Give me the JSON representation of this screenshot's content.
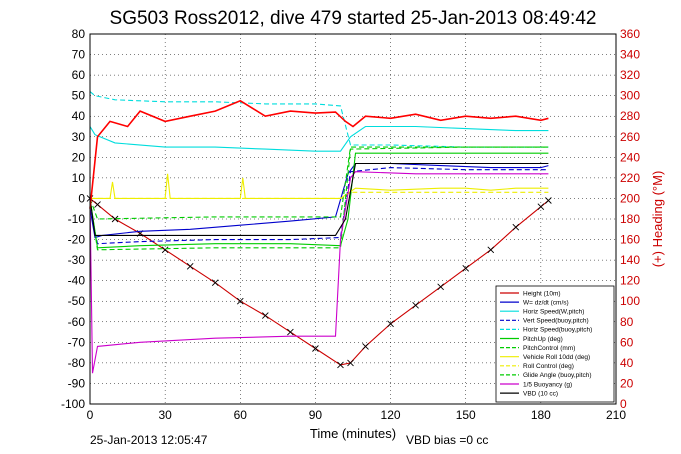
{
  "chart_data": {
    "type": "line",
    "title": "SG503 Ross2012, dive 479 started 25-Jan-2013 08:49:42",
    "xlabel": "Time (minutes)",
    "ylabel_right": "(+) Heading (°M)",
    "xlim": [
      0,
      210
    ],
    "ylim": [
      -100,
      80
    ],
    "ylim_right": [
      0,
      360
    ],
    "x_ticks": [
      "0",
      "30",
      "60",
      "90",
      "120",
      "150",
      "180",
      "210"
    ],
    "y_ticks": [
      "80",
      "70",
      "60",
      "50",
      "40",
      "30",
      "20",
      "10",
      "0",
      "-10",
      "-20",
      "-30",
      "-40",
      "-50",
      "-60",
      "-70",
      "-80",
      "-90",
      "-100"
    ],
    "y_ticks_right": [
      "360",
      "340",
      "320",
      "300",
      "280",
      "260",
      "240",
      "220",
      "200",
      "180",
      "160",
      "140",
      "120",
      "100",
      "80",
      "60",
      "40",
      "20",
      "0"
    ],
    "grid": true,
    "legend_position": "bottom-right",
    "footer_left": "25-Jan-2013 12:05:47",
    "footer_right": "VBD bias =0 cc",
    "series": [
      {
        "name": "Height (10m)",
        "color": "#cc0000",
        "style": "solid",
        "marker": "x",
        "x": [
          0,
          3,
          10,
          20,
          30,
          40,
          50,
          60,
          70,
          80,
          90,
          100,
          104,
          110,
          120,
          130,
          140,
          150,
          160,
          170,
          180,
          183
        ],
        "y": [
          0,
          -3,
          -10,
          -17,
          -25,
          -33,
          -41,
          -50,
          -57,
          -65,
          -73,
          -81,
          -80,
          -72,
          -61,
          -52,
          -43,
          -34,
          -25,
          -14,
          -4,
          -1
        ]
      },
      {
        "name": "W= dz/dt (cm/s)",
        "color": "#0000cc",
        "style": "solid",
        "x": [
          0,
          2,
          5,
          20,
          40,
          60,
          80,
          98,
          103,
          106,
          120,
          140,
          160,
          180,
          183
        ],
        "y": [
          -5,
          -19,
          -18,
          -16,
          -15,
          -13,
          -11,
          -9,
          12,
          17,
          17,
          16,
          15,
          15,
          16
        ]
      },
      {
        "name": "Horiz Speed(W,pitch)",
        "color": "#00dddd",
        "style": "solid",
        "x": [
          0,
          2,
          10,
          30,
          50,
          70,
          90,
          100,
          104,
          110,
          130,
          150,
          170,
          183
        ],
        "y": [
          35,
          31,
          27,
          25,
          25,
          24,
          23,
          23,
          30,
          35,
          35,
          34,
          33,
          33
        ]
      },
      {
        "name": "Vert Speed(buoy,pitch)",
        "color": "#0000cc",
        "style": "dashed",
        "x": [
          0,
          3,
          20,
          50,
          80,
          100,
          104,
          120,
          150,
          183
        ],
        "y": [
          -5,
          -22,
          -21,
          -20,
          -20,
          -19,
          13,
          15,
          14,
          14
        ]
      },
      {
        "name": "Horiz Speed(buoy,pitch)",
        "color": "#00dddd",
        "style": "dashed",
        "x": [
          0,
          2,
          10,
          30,
          50,
          70,
          90,
          100,
          104,
          120,
          150,
          183
        ],
        "y": [
          52,
          50,
          48,
          47,
          47,
          46,
          46,
          45,
          26,
          26,
          25,
          25
        ]
      },
      {
        "name": "PitchUp (deg)",
        "color": "#00cc00",
        "style": "solid",
        "x": [
          0,
          3,
          20,
          50,
          80,
          100,
          103,
          106,
          130,
          160,
          183
        ],
        "y": [
          0,
          -24,
          -23,
          -22,
          -22,
          -23,
          -10,
          22,
          22,
          22,
          22
        ]
      },
      {
        "name": "PitchControl (mm)",
        "color": "#00cc00",
        "style": "dashed",
        "x": [
          0,
          3,
          50,
          100,
          104,
          130,
          183
        ],
        "y": [
          0,
          -10,
          -9,
          -9,
          25,
          25,
          25
        ]
      },
      {
        "name": "Vehicle Roll 10dd (deg)",
        "color": "#eeee00",
        "style": "solid",
        "x": [
          0,
          8,
          9,
          10,
          20,
          30,
          31,
          32,
          60,
          61,
          62,
          100,
          106,
          120,
          140,
          150,
          160,
          170,
          183
        ],
        "y": [
          0,
          0,
          8,
          0,
          0,
          0,
          12,
          0,
          0,
          10,
          0,
          0,
          5,
          4,
          5,
          5,
          4,
          5,
          5
        ]
      },
      {
        "name": "Roll Control (deg)",
        "color": "#eeee00",
        "style": "dashed",
        "x": [
          0,
          100,
          104,
          183
        ],
        "y": [
          0,
          0,
          3,
          3
        ]
      },
      {
        "name": "Glide Angle (buoy,pitch)",
        "color": "#00cc00",
        "style": "dashed",
        "x": [
          0,
          3,
          50,
          100,
          104,
          150,
          183
        ],
        "y": [
          0,
          -25,
          -24,
          -24,
          24,
          25,
          25
        ]
      },
      {
        "name": "1/5 Buoyancy (g)",
        "color": "#cc00cc",
        "style": "solid",
        "x": [
          0,
          1,
          3,
          20,
          50,
          80,
          98,
          100,
          104,
          106,
          130,
          160,
          183
        ],
        "y": [
          0,
          -85,
          -72,
          -70,
          -68,
          -67,
          -67,
          -20,
          10,
          13,
          12,
          12,
          12
        ]
      },
      {
        "name": "VBD (10 cc)",
        "color": "#000000",
        "style": "solid",
        "x": [
          0,
          2,
          98,
          102,
          106,
          183
        ],
        "y": [
          0,
          -18,
          -18,
          -10,
          17,
          17
        ]
      },
      {
        "name": "Heading",
        "color": "#ff0000",
        "style": "solid",
        "axis": "right",
        "x": [
          0,
          3,
          8,
          15,
          20,
          30,
          40,
          50,
          60,
          70,
          80,
          90,
          98,
          102,
          105,
          110,
          120,
          130,
          140,
          150,
          160,
          170,
          180,
          183
        ],
        "y": [
          190,
          260,
          275,
          270,
          285,
          275,
          280,
          285,
          295,
          280,
          285,
          283,
          284,
          275,
          270,
          280,
          278,
          282,
          276,
          280,
          278,
          280,
          276,
          278
        ]
      }
    ]
  }
}
